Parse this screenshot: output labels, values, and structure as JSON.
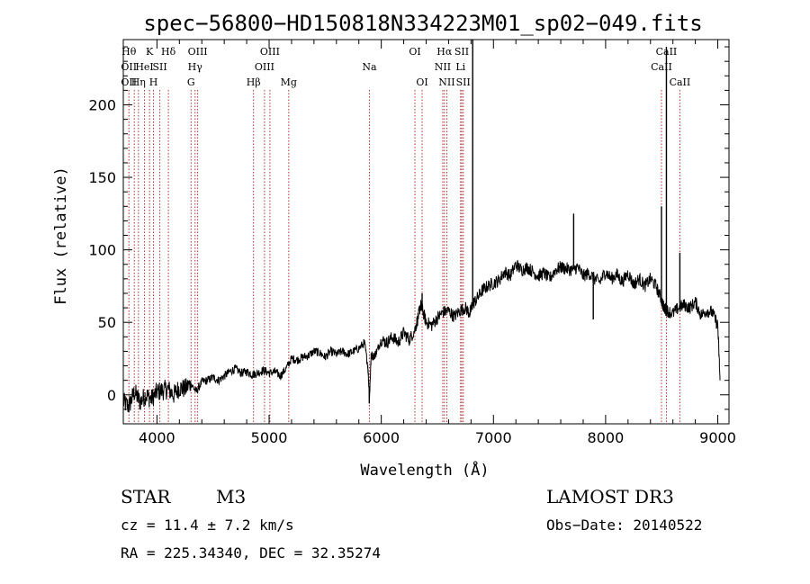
{
  "chart_data": {
    "type": "line",
    "title": "spec−56800−HD150818N334223M01_sp02−049.fits",
    "xlabel": "Wavelength (Å)",
    "ylabel": "Flux (relative)",
    "xlim": [
      3700,
      9100
    ],
    "ylim": [
      -20,
      245
    ],
    "xticks": [
      4000,
      5000,
      6000,
      7000,
      8000,
      9000
    ],
    "yticks": [
      0,
      50,
      100,
      150,
      200
    ],
    "series": [
      {
        "name": "spectrum",
        "x": [
          3700,
          3750,
          3800,
          3850,
          3900,
          3950,
          4000,
          4050,
          4100,
          4150,
          4200,
          4250,
          4300,
          4350,
          4400,
          4450,
          4500,
          4550,
          4600,
          4650,
          4700,
          4750,
          4800,
          4850,
          4900,
          4950,
          5000,
          5050,
          5100,
          5150,
          5200,
          5250,
          5300,
          5350,
          5400,
          5450,
          5500,
          5550,
          5600,
          5650,
          5700,
          5750,
          5800,
          5850,
          5880,
          5895,
          5910,
          5930,
          5960,
          6000,
          6050,
          6100,
          6150,
          6200,
          6250,
          6300,
          6330,
          6350,
          6370,
          6400,
          6450,
          6500,
          6550,
          6600,
          6650,
          6700,
          6750,
          6790,
          6810,
          6850,
          6900,
          6950,
          7000,
          7050,
          7100,
          7150,
          7200,
          7250,
          7300,
          7350,
          7400,
          7450,
          7500,
          7550,
          7600,
          7650,
          7700,
          7750,
          7800,
          7850,
          7900,
          7950,
          8000,
          8050,
          8100,
          8150,
          8200,
          8250,
          8300,
          8350,
          8400,
          8450,
          8500,
          8520,
          8550,
          8600,
          8650,
          8700,
          8750,
          8800,
          8850,
          8900,
          8950,
          9000,
          9020
        ],
        "values": [
          -5,
          -8,
          2,
          -5,
          0,
          -3,
          2,
          3,
          4,
          0,
          5,
          4,
          8,
          2,
          9,
          10,
          12,
          10,
          13,
          16,
          18,
          15,
          16,
          14,
          15,
          17,
          15,
          16,
          13,
          18,
          25,
          24,
          26,
          27,
          30,
          29,
          26,
          30,
          28,
          30,
          28,
          30,
          32,
          36,
          20,
          -2,
          28,
          26,
          30,
          38,
          36,
          40,
          36,
          43,
          38,
          45,
          54,
          62,
          58,
          50,
          48,
          53,
          57,
          58,
          54,
          58,
          60,
          56,
          62,
          66,
          72,
          75,
          77,
          79,
          85,
          82,
          90,
          86,
          88,
          85,
          82,
          84,
          80,
          86,
          88,
          87,
          86,
          88,
          82,
          84,
          80,
          78,
          85,
          80,
          83,
          78,
          84,
          76,
          80,
          75,
          80,
          75,
          65,
          60,
          58,
          56,
          60,
          62,
          60,
          64,
          55,
          58,
          57,
          48,
          10
        ]
      }
    ],
    "spikes": [
      {
        "x": 5893,
        "y": -6
      },
      {
        "x": 6364,
        "y": 70
      },
      {
        "x": 6815,
        "y": 245
      },
      {
        "x": 7715,
        "y": 125
      },
      {
        "x": 7890,
        "y": 52
      },
      {
        "x": 8498,
        "y": 130
      },
      {
        "x": 8542,
        "y": 240
      },
      {
        "x": 8662,
        "y": 98
      }
    ],
    "lines": [
      {
        "x": 3750,
        "labels": [
          {
            "text": "Hθ",
            "row": 0
          },
          {
            "text": "OII",
            "row": 1
          },
          {
            "text": "OII",
            "row": 2
          }
        ]
      },
      {
        "x": 3798,
        "labels": []
      },
      {
        "x": 3835,
        "labels": [
          {
            "text": "Hη",
            "row": 2
          }
        ]
      },
      {
        "x": 3889,
        "labels": [
          {
            "text": "HeI",
            "row": 1
          }
        ]
      },
      {
        "x": 3934,
        "labels": [
          {
            "text": "K",
            "row": 0
          }
        ]
      },
      {
        "x": 3969,
        "labels": [
          {
            "text": "H",
            "row": 2
          }
        ]
      },
      {
        "x": 4026,
        "labels": [
          {
            "text": "SII",
            "row": 1
          }
        ]
      },
      {
        "x": 4102,
        "labels": [
          {
            "text": "Hδ",
            "row": 0
          }
        ]
      },
      {
        "x": 4304,
        "labels": [
          {
            "text": "G",
            "row": 2
          }
        ]
      },
      {
        "x": 4340,
        "labels": [
          {
            "text": "Hγ",
            "row": 1
          }
        ]
      },
      {
        "x": 4363,
        "labels": [
          {
            "text": "OIII",
            "row": 0
          }
        ]
      },
      {
        "x": 4861,
        "labels": [
          {
            "text": "Hβ",
            "row": 2
          }
        ]
      },
      {
        "x": 4959,
        "labels": [
          {
            "text": "OIII",
            "row": 1
          }
        ]
      },
      {
        "x": 5007,
        "labels": [
          {
            "text": "OIII",
            "row": 0
          }
        ]
      },
      {
        "x": 5175,
        "labels": [
          {
            "text": "Mg",
            "row": 2
          }
        ]
      },
      {
        "x": 5894,
        "labels": [
          {
            "text": "Na",
            "row": 1
          }
        ]
      },
      {
        "x": 6300,
        "labels": [
          {
            "text": "OI",
            "row": 0
          }
        ]
      },
      {
        "x": 6364,
        "labels": [
          {
            "text": "OI",
            "row": 2
          }
        ]
      },
      {
        "x": 6548,
        "labels": [
          {
            "text": "NII",
            "row": 1
          }
        ]
      },
      {
        "x": 6563,
        "labels": [
          {
            "text": "Hα",
            "row": 0
          }
        ]
      },
      {
        "x": 6584,
        "labels": [
          {
            "text": "NII",
            "row": 2
          }
        ]
      },
      {
        "x": 6707,
        "labels": [
          {
            "text": "Li",
            "row": 1
          }
        ]
      },
      {
        "x": 6717,
        "labels": [
          {
            "text": "SII",
            "row": 0
          }
        ]
      },
      {
        "x": 6731,
        "labels": [
          {
            "text": "SII",
            "row": 2
          }
        ]
      },
      {
        "x": 8498,
        "labels": [
          {
            "text": "CaII",
            "row": 1
          }
        ]
      },
      {
        "x": 8542,
        "labels": [
          {
            "text": "CaII",
            "row": 0
          }
        ]
      },
      {
        "x": 8662,
        "labels": [
          {
            "text": "CaII",
            "row": 2
          }
        ]
      }
    ],
    "line_color": "#b03030"
  },
  "info": {
    "class_label": "STAR",
    "subclass": "M3",
    "survey": "LAMOST DR3",
    "cz": "cz = 11.4 ± 7.2 km/s",
    "obs_date": "Obs−Date: 20140522",
    "coords": "RA = 225.34340, DEC =  32.35274"
  }
}
